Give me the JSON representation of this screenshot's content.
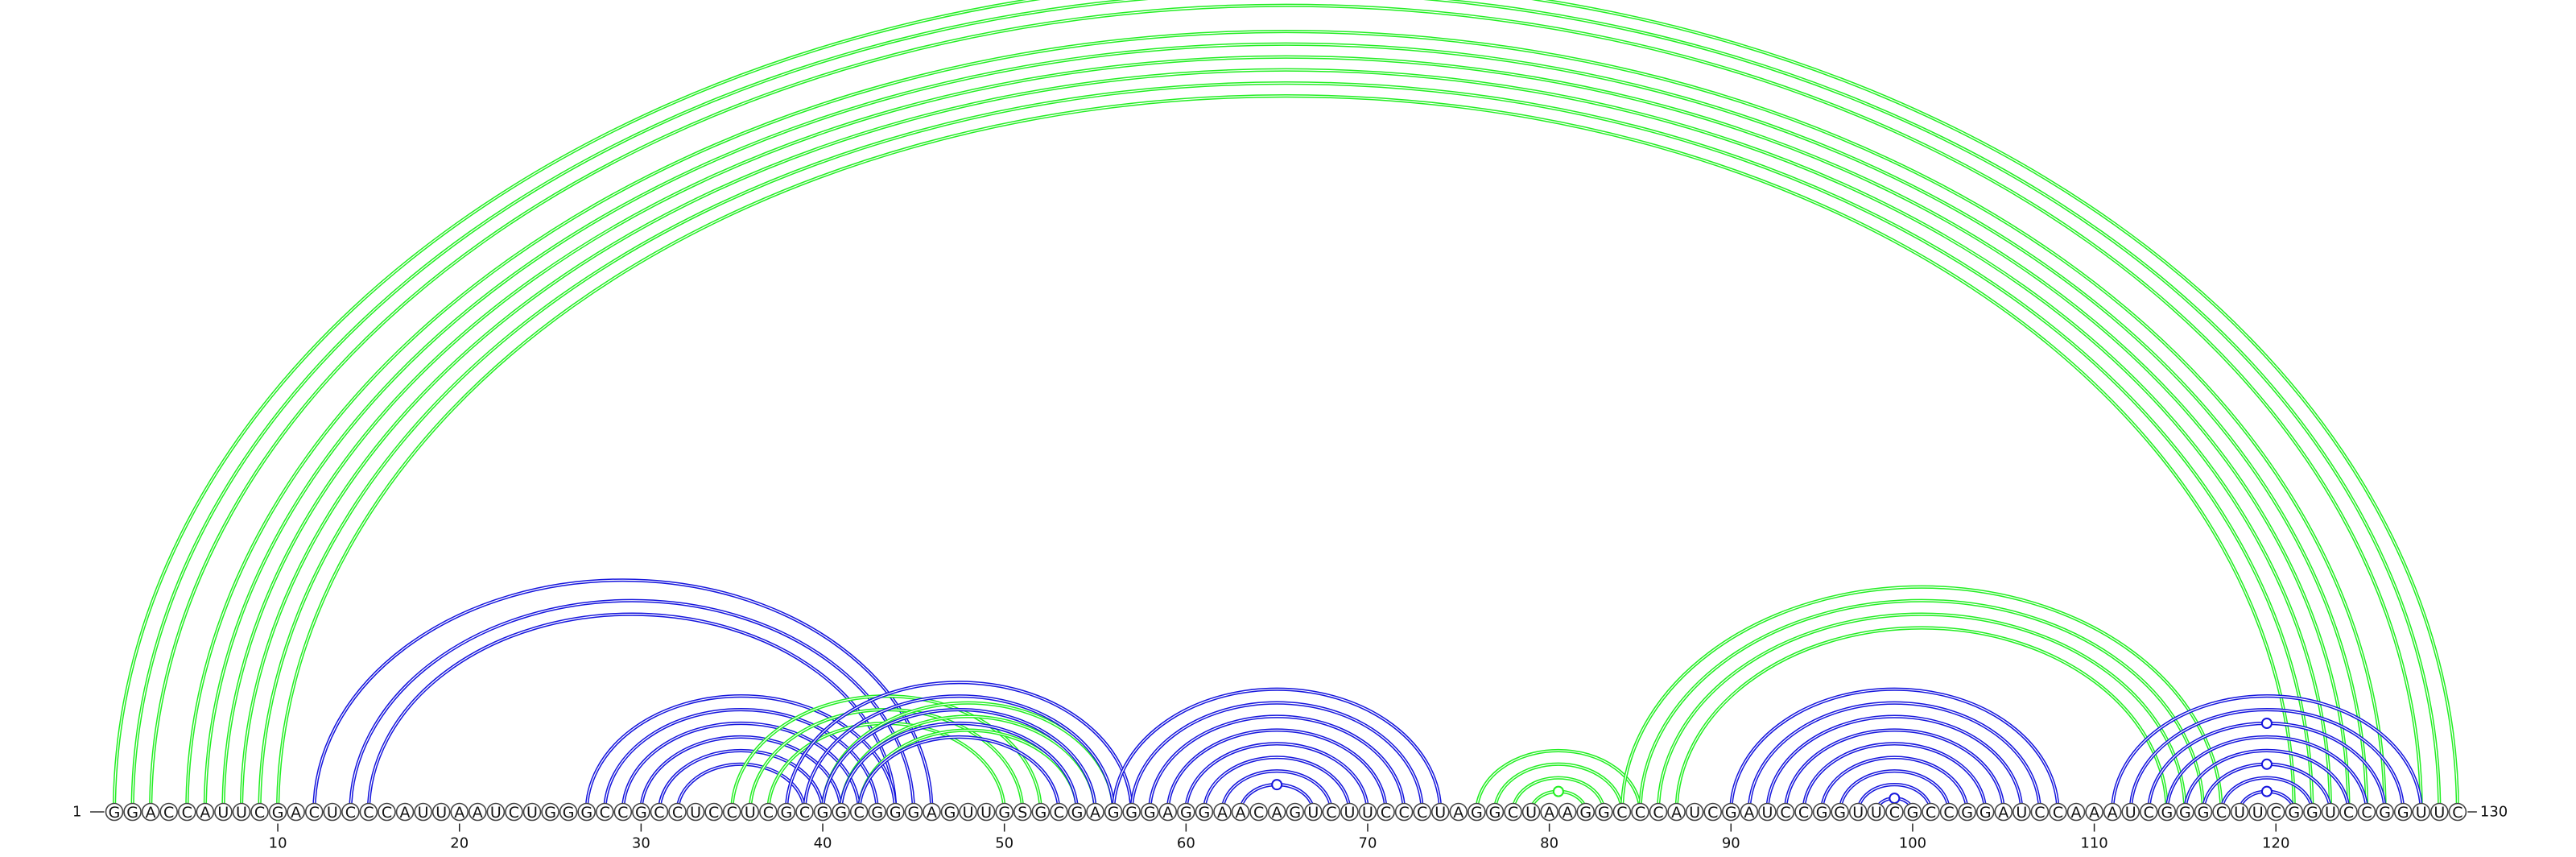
{
  "diagram": {
    "sequence": "GGACCAUUCGACUCCCAUUAAUCUGGGCCGCCUCCUCGCGGCGGGAGUUGSGCGAGGGAGGAACAGUCUUCCCUAGGCUAAGGCCCAUCGAUCCGGUUCGCCGGAUCCAAAUCGGGCUUCGGUCCGGUUC",
    "start_label": "1",
    "end_label": "130",
    "ticks": [
      10,
      20,
      30,
      40,
      50,
      60,
      70,
      80,
      90,
      100,
      110,
      120
    ],
    "colors": {
      "green": "#22ee22",
      "blue": "#1515dd",
      "outline": "#444444"
    },
    "helices": [
      {
        "color": "green",
        "pairs": [
          [
            1,
            130
          ],
          [
            2,
            129
          ],
          [
            3,
            128
          ],
          [
            5,
            126
          ],
          [
            6,
            125
          ],
          [
            7,
            124
          ],
          [
            8,
            123
          ],
          [
            9,
            122
          ],
          [
            10,
            121
          ]
        ],
        "gaps": [
          [
            3,
            5
          ]
        ]
      },
      {
        "color": "blue",
        "pairs": [
          [
            12,
            46
          ],
          [
            14,
            45
          ],
          [
            15,
            44
          ]
        ]
      },
      {
        "color": "blue",
        "pairs": [
          [
            27,
            44
          ],
          [
            28,
            43
          ],
          [
            29,
            42
          ],
          [
            30,
            41
          ],
          [
            31,
            40
          ],
          [
            32,
            39
          ]
        ]
      },
      {
        "color": "green",
        "pairs": [
          [
            35,
            52
          ],
          [
            36,
            51
          ],
          [
            37,
            50
          ]
        ]
      },
      {
        "color": "green",
        "pairs": [
          [
            40,
            56
          ],
          [
            41,
            55
          ],
          [
            42,
            54
          ]
        ]
      },
      {
        "color": "blue",
        "pairs": [
          [
            38,
            57
          ],
          [
            39,
            56
          ],
          [
            40,
            55
          ],
          [
            41,
            54
          ],
          [
            42,
            53
          ]
        ]
      },
      {
        "color": "blue",
        "pairs": [
          [
            56,
            74
          ],
          [
            57,
            73
          ],
          [
            58,
            72
          ],
          [
            59,
            71
          ],
          [
            60,
            70
          ],
          [
            61,
            69
          ],
          [
            62,
            68
          ],
          [
            63,
            67
          ]
        ]
      },
      {
        "color": "green",
        "pairs": [
          [
            76,
            85
          ],
          [
            77,
            84
          ],
          [
            78,
            83
          ],
          [
            79,
            82
          ]
        ]
      },
      {
        "color": "green",
        "pairs": [
          [
            84,
            117
          ],
          [
            85,
            116
          ],
          [
            86,
            115
          ],
          [
            87,
            114
          ]
        ]
      },
      {
        "color": "blue",
        "pairs": [
          [
            90,
            108
          ],
          [
            91,
            107
          ],
          [
            92,
            106
          ],
          [
            93,
            105
          ],
          [
            94,
            104
          ],
          [
            95,
            103
          ],
          [
            96,
            102
          ],
          [
            97,
            101
          ],
          [
            98,
            100
          ]
        ]
      },
      {
        "color": "blue",
        "pairs": [
          [
            111,
            128
          ],
          [
            112,
            127
          ],
          [
            113,
            126
          ],
          [
            114,
            125
          ],
          [
            115,
            124
          ],
          [
            116,
            123
          ],
          [
            117,
            122
          ],
          [
            118,
            121
          ]
        ]
      }
    ]
  }
}
